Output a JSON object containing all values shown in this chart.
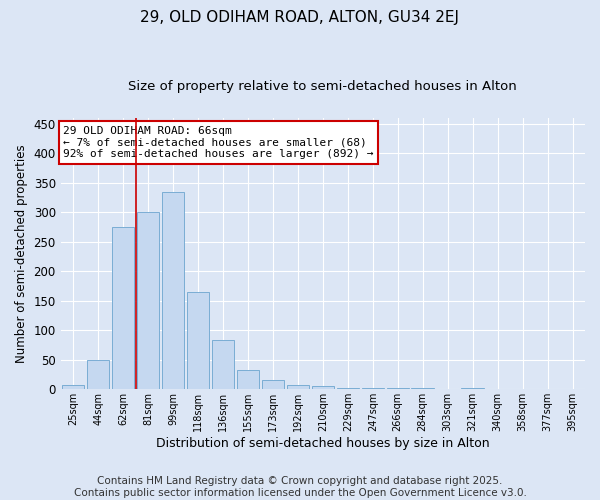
{
  "title1": "29, OLD ODIHAM ROAD, ALTON, GU34 2EJ",
  "title2": "Size of property relative to semi-detached houses in Alton",
  "xlabel": "Distribution of semi-detached houses by size in Alton",
  "ylabel": "Number of semi-detached properties",
  "bar_color": "#c5d8f0",
  "bar_edge_color": "#7aadd4",
  "background_color": "#dce6f5",
  "grid_color": "#ffffff",
  "categories": [
    "25sqm",
    "44sqm",
    "62sqm",
    "81sqm",
    "99sqm",
    "118sqm",
    "136sqm",
    "155sqm",
    "173sqm",
    "192sqm",
    "210sqm",
    "229sqm",
    "247sqm",
    "266sqm",
    "284sqm",
    "303sqm",
    "321sqm",
    "340sqm",
    "358sqm",
    "377sqm",
    "395sqm"
  ],
  "values": [
    7,
    50,
    275,
    300,
    335,
    165,
    83,
    32,
    15,
    7,
    5,
    3,
    3,
    3,
    2,
    1,
    3,
    1,
    0,
    0,
    0
  ],
  "ylim": [
    0,
    460
  ],
  "yticks": [
    0,
    50,
    100,
    150,
    200,
    250,
    300,
    350,
    400,
    450
  ],
  "red_line_x": 2.5,
  "annotation_text": "29 OLD ODIHAM ROAD: 66sqm\n← 7% of semi-detached houses are smaller (68)\n92% of semi-detached houses are larger (892) →",
  "annotation_box_color": "#ffffff",
  "annotation_border_color": "#cc0000",
  "footer_line1": "Contains HM Land Registry data © Crown copyright and database right 2025.",
  "footer_line2": "Contains public sector information licensed under the Open Government Licence v3.0.",
  "title1_fontsize": 11,
  "title2_fontsize": 9.5,
  "annotation_fontsize": 8,
  "footer_fontsize": 7.5,
  "xlabel_fontsize": 9,
  "ylabel_fontsize": 8.5
}
